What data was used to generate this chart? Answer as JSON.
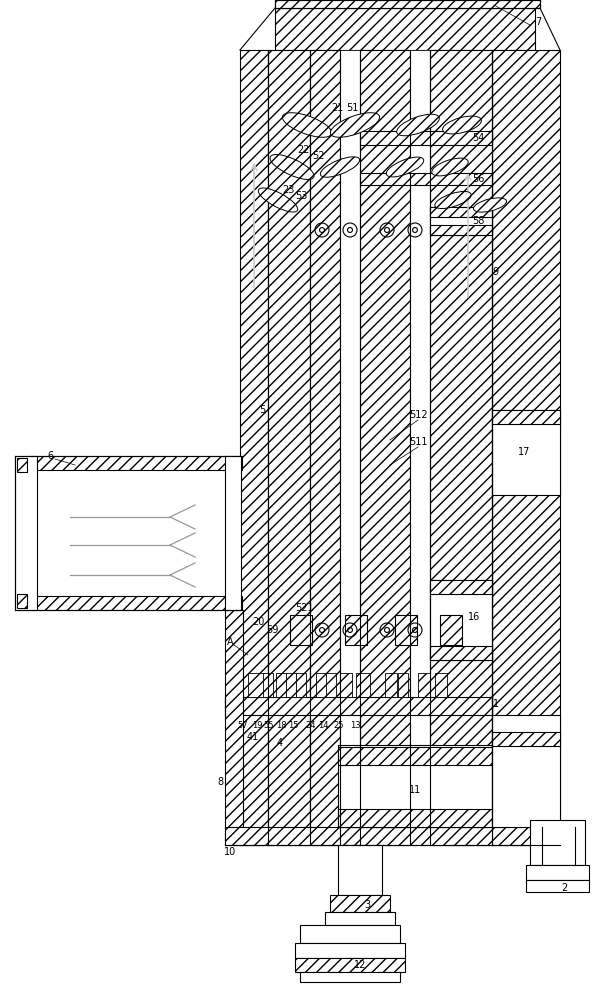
{
  "bg": "#ffffff",
  "lc": "#000000",
  "gray_arrow": "#aaaaaa",
  "gray_arrow2": "#bbbbbb"
}
